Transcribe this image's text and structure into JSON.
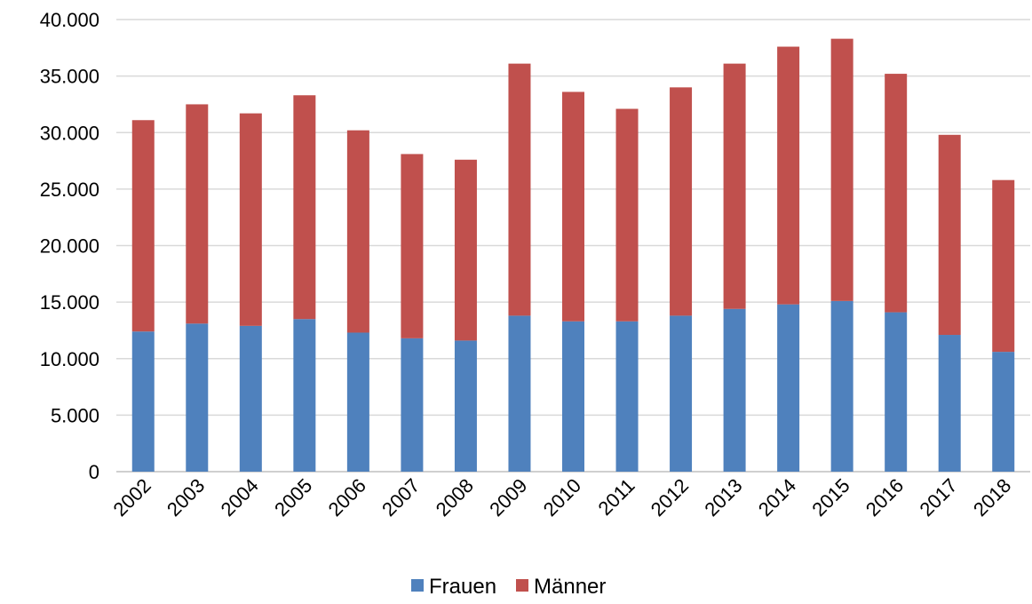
{
  "chart_data": {
    "type": "bar",
    "stacked": true,
    "title": "",
    "xlabel": "",
    "ylabel": "",
    "categories": [
      "2002",
      "2003",
      "2004",
      "2005",
      "2006",
      "2007",
      "2008",
      "2009",
      "2010",
      "2011",
      "2012",
      "2013",
      "2014",
      "2015",
      "2016",
      "2017",
      "2018"
    ],
    "series": [
      {
        "name": "Frauen",
        "color": "#4f81bd",
        "values": [
          12400,
          13100,
          12900,
          13500,
          12300,
          11800,
          11600,
          13800,
          13300,
          13300,
          13800,
          14400,
          14800,
          15100,
          14100,
          12100,
          10600
        ]
      },
      {
        "name": "Männer",
        "color": "#c0504d",
        "values": [
          18700,
          19400,
          18800,
          19800,
          17900,
          16300,
          16000,
          22300,
          20300,
          18800,
          20200,
          21700,
          22800,
          23200,
          21100,
          17700,
          15200
        ]
      }
    ],
    "ylim": [
      0,
      40000
    ],
    "yticks": [
      0,
      5000,
      10000,
      15000,
      20000,
      25000,
      30000,
      35000,
      40000
    ],
    "ytick_labels": [
      "0",
      "5.000",
      "10.000",
      "15.000",
      "20.000",
      "25.000",
      "30.000",
      "35.000",
      "40.000"
    ],
    "grid": true,
    "legend": "bottom"
  }
}
